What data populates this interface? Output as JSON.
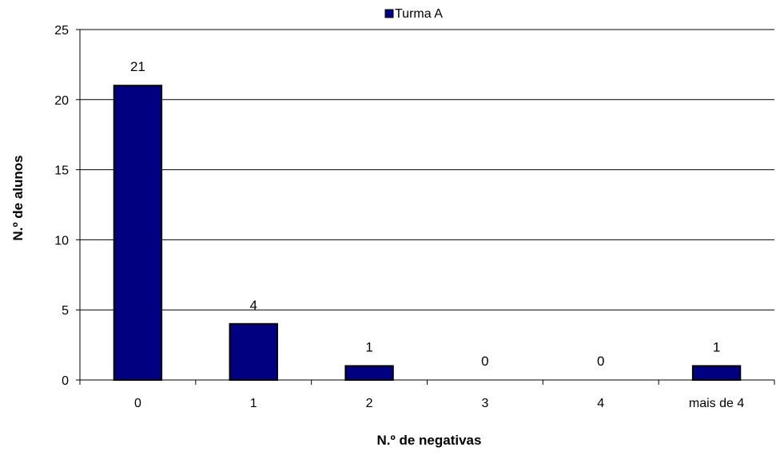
{
  "chart_data": {
    "type": "bar",
    "categories": [
      "0",
      "1",
      "2",
      "3",
      "4",
      "mais de 4"
    ],
    "series": [
      {
        "name": "Turma A",
        "values": [
          21,
          4,
          1,
          0,
          0,
          1
        ]
      }
    ],
    "data_labels": [
      "21",
      "4",
      "1",
      "0",
      "0",
      "1"
    ],
    "xlabel": "N.º de negativas",
    "ylabel": "N.º de alunos",
    "ylim": [
      0,
      25
    ],
    "yticks": [
      "0",
      "5",
      "10",
      "15",
      "20",
      "25"
    ],
    "grid": true,
    "legend_position": "top",
    "colors": {
      "bar": "#000080",
      "bar_border": "#000000",
      "grid": "#000000"
    }
  }
}
